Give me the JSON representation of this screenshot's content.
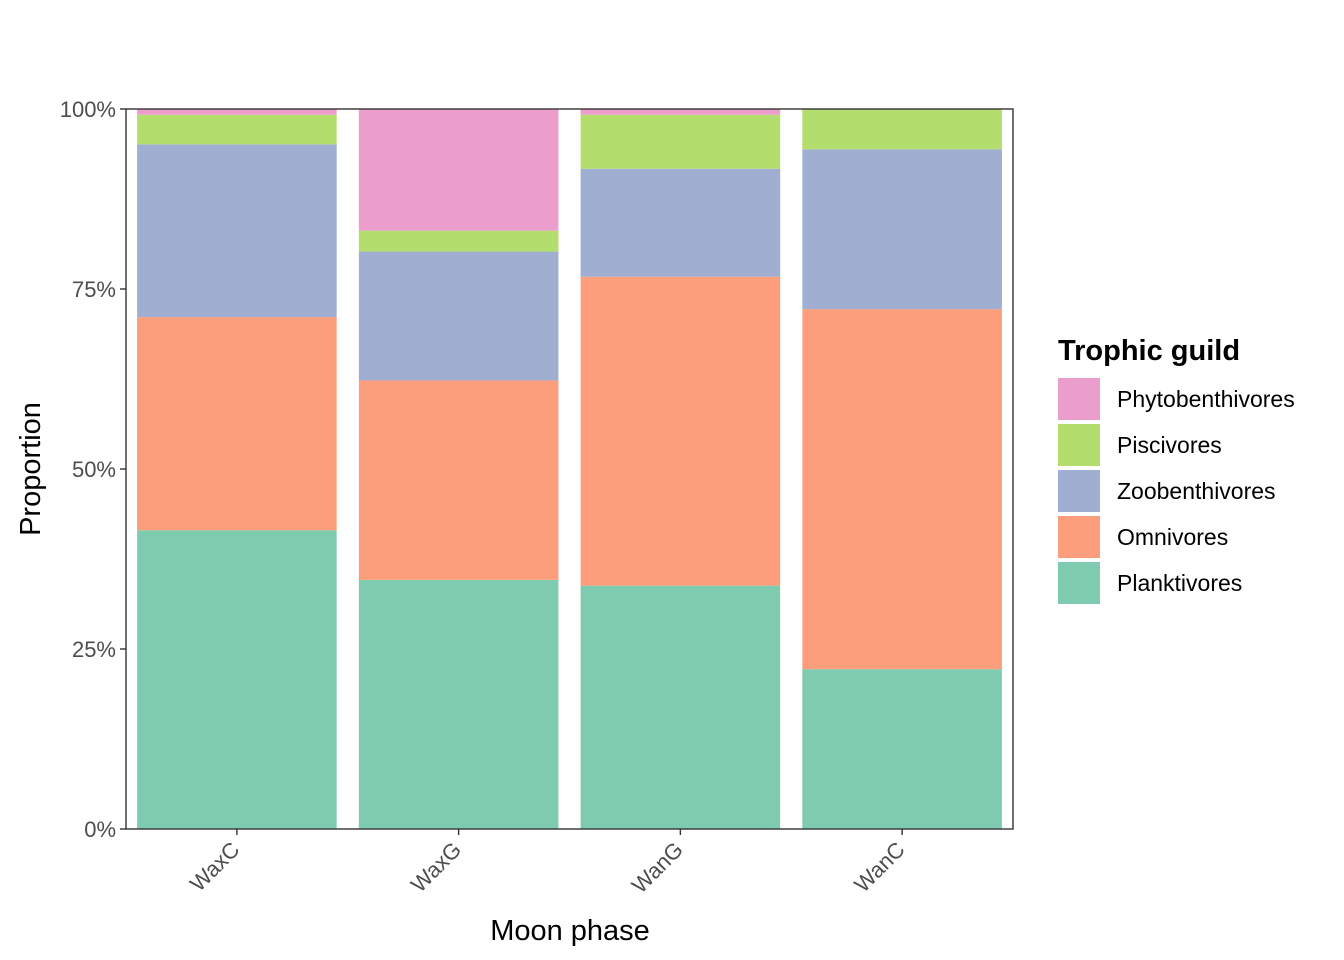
{
  "chart_data": {
    "type": "bar",
    "stacked": true,
    "categories": [
      "WaxC",
      "WaxG",
      "WanG",
      "WanC"
    ],
    "series": [
      {
        "name": "Planktivores",
        "color": "#7FCBB0",
        "values": [
          41.5,
          34.6,
          33.8,
          22.2
        ]
      },
      {
        "name": "Omnivores",
        "color": "#FC9E7B",
        "values": [
          29.6,
          27.7,
          42.9,
          50.0
        ]
      },
      {
        "name": "Zoobenthivores",
        "color": "#9FAED1",
        "values": [
          24.0,
          17.9,
          15.0,
          22.2
        ]
      },
      {
        "name": "Piscivores",
        "color": "#B3DE6E",
        "values": [
          4.1,
          2.9,
          7.5,
          5.6
        ]
      },
      {
        "name": "Phytobenthivores",
        "color": "#EB9DCB",
        "values": [
          0.8,
          16.9,
          0.8,
          0.0
        ]
      }
    ],
    "xlabel": "Moon phase",
    "ylabel": "Proportion",
    "ylim": [
      0,
      100
    ],
    "yticks": [
      "0%",
      "25%",
      "50%",
      "75%",
      "100%"
    ],
    "ytick_values": [
      0,
      25,
      50,
      75,
      100
    ],
    "legend": {
      "title": "Trophic guild",
      "placement": "right",
      "order": [
        "Phytobenthivores",
        "Piscivores",
        "Zoobenthivores",
        "Omnivores",
        "Planktivores"
      ]
    },
    "grid": false
  }
}
